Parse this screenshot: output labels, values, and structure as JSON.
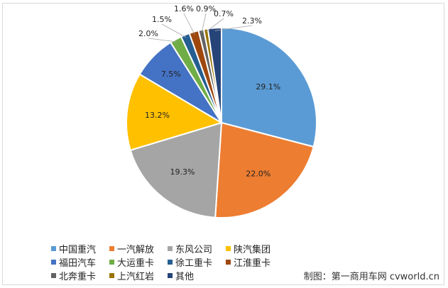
{
  "chart_data": {
    "type": "pie",
    "series": [
      {
        "name": "中国重汽",
        "value": 29.1,
        "label": "29.1%",
        "color": "#5b9bd5"
      },
      {
        "name": "一汽解放",
        "value": 22.0,
        "label": "22.0%",
        "color": "#ed7d31"
      },
      {
        "name": "东风公司",
        "value": 19.3,
        "label": "19.3%",
        "color": "#a5a5a5"
      },
      {
        "name": "陕汽集团",
        "value": 13.2,
        "label": "13.2%",
        "color": "#ffc000"
      },
      {
        "name": "福田汽车",
        "value": 7.5,
        "label": "7.5%",
        "color": "#4472c4"
      },
      {
        "name": "大运重卡",
        "value": 2.0,
        "label": "2.0%",
        "color": "#70ad47"
      },
      {
        "name": "徐工重卡",
        "value": 1.5,
        "label": "1.5%",
        "color": "#255e91"
      },
      {
        "name": "江淮重卡",
        "value": 1.6,
        "label": "1.6%",
        "color": "#9e480e"
      },
      {
        "name": "北奔重卡",
        "value": 0.9,
        "label": "0.9%",
        "color": "#636363"
      },
      {
        "name": "上汽红岩",
        "value": 0.7,
        "label": "0.7%",
        "color": "#997300"
      },
      {
        "name": "其他",
        "value": 2.3,
        "label": "2.3%",
        "color": "#264478"
      }
    ],
    "legend_position": "bottom-left"
  },
  "credit": "制图：第一商用车网 cvworld.cn"
}
